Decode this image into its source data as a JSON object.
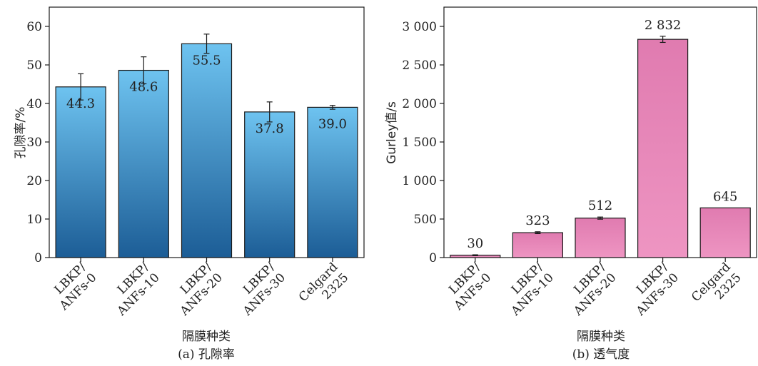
{
  "chart_data": [
    {
      "type": "bar",
      "title": "",
      "caption": "(a) 孔隙率",
      "xlabel": "隔膜种类",
      "ylabel": "孔隙率/%",
      "ylim": [
        0,
        65
      ],
      "yticks": [
        0,
        10,
        20,
        30,
        40,
        50,
        60
      ],
      "ytick_labels": [
        "0",
        "10",
        "20",
        "30",
        "40",
        "50",
        "60"
      ],
      "categories": [
        [
          "LBKP/",
          "ANFs-0"
        ],
        [
          "LBKP/",
          "ANFs-10"
        ],
        [
          "LBKP/",
          "ANFs-20"
        ],
        [
          "LBKP/",
          "ANFs-30"
        ],
        [
          "Celgard",
          "2325"
        ]
      ],
      "values": [
        44.3,
        48.6,
        55.5,
        37.8,
        39.0
      ],
      "value_labels": [
        "44.3",
        "48.6",
        "55.5",
        "37.8",
        "39.0"
      ],
      "errors": [
        3.4,
        3.5,
        2.5,
        2.6,
        0.5
      ],
      "label_position": "inside-top",
      "colors": {
        "bar_top": "#6ec3f0",
        "bar_bottom": "#1c5d96",
        "edge": "#1a1a1a"
      }
    },
    {
      "type": "bar",
      "title": "",
      "caption": "(b) 透气度",
      "xlabel": "隔膜种类",
      "ylabel": "Gurley值/s",
      "ylim": [
        0,
        3250
      ],
      "yticks": [
        0,
        500,
        1000,
        1500,
        2000,
        2500,
        3000
      ],
      "ytick_labels": [
        "0",
        "500",
        "1 000",
        "1 500",
        "2 000",
        "2 500",
        "3 000"
      ],
      "categories": [
        [
          "LBKP/",
          "ANFs-0"
        ],
        [
          "LBKP/",
          "ANFs-10"
        ],
        [
          "LBKP/",
          "ANFs-20"
        ],
        [
          "LBKP/",
          "ANFs-30"
        ],
        [
          "Celgard",
          "2325"
        ]
      ],
      "values": [
        30,
        323,
        512,
        2832,
        645
      ],
      "value_labels": [
        "30",
        "323",
        "512",
        "2 832",
        "645"
      ],
      "errors": [
        6,
        12,
        14,
        40,
        0
      ],
      "label_position": "above",
      "colors": {
        "bar_top": "#e07bb0",
        "bar_bottom": "#ee95c2",
        "edge": "#1a1a1a"
      }
    }
  ]
}
